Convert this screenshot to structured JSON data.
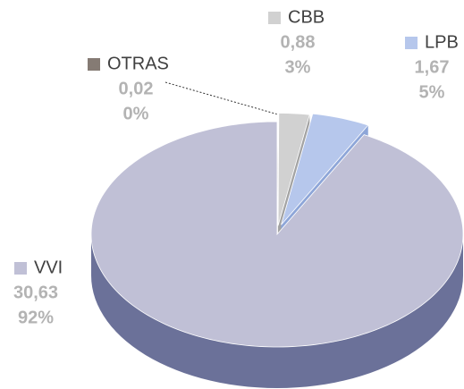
{
  "chart_data": {
    "type": "pie3d",
    "categories": [
      "OTRAS",
      "CBB",
      "LPB",
      "VVI"
    ],
    "values": [
      0.02,
      0.88,
      1.67,
      30.63
    ],
    "value_labels": [
      "0,02",
      "0,88",
      "1,67",
      "30,63"
    ],
    "percent_labels": [
      "0%",
      "3%",
      "5%",
      "92%"
    ],
    "colors": [
      "#857b74",
      "#d1d1d1",
      "#b6c7ec",
      "#c0c0d6"
    ],
    "side_colors": [
      "#6b625c",
      "#a3a3a3",
      "#8ea6d8",
      "#6b7199"
    ]
  }
}
